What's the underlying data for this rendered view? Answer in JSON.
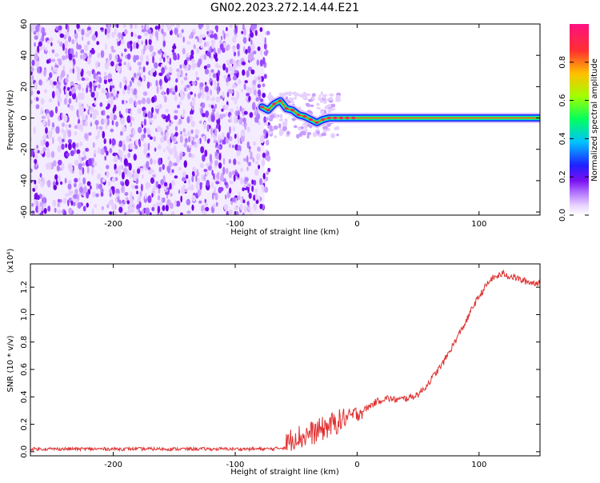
{
  "title": "GN02.2023.272.14.44.E21",
  "chart_data": [
    {
      "type": "heatmap",
      "xlabel": "Height of straight line (km)",
      "ylabel": "Frequency (Hz)",
      "xlim": [
        -268,
        150
      ],
      "ylim": [
        -62,
        60
      ],
      "x_ticks": [
        -200,
        -100,
        0,
        100
      ],
      "y_ticks": [
        -60,
        -40,
        -20,
        0,
        20,
        40,
        60
      ],
      "colorbar": {
        "label": "Normalized spectral amplitude",
        "range": [
          0.0,
          1.0
        ],
        "ticks": [
          0.0,
          0.2,
          0.4,
          0.6,
          0.8
        ],
        "colormap": [
          "#ffffff",
          "#e8d4ff",
          "#b070ff",
          "#7a10f0",
          "#2020ff",
          "#00c0ff",
          "#00ff60",
          "#a0ff00",
          "#ffc000",
          "#ff3030",
          "#ff1080"
        ]
      },
      "noise_region_x": [
        -268,
        -76
      ],
      "signal_track": {
        "x": [
          -78,
          -73,
          -68,
          -63,
          -58,
          -53,
          -48,
          -43,
          -38,
          -33,
          -28,
          -23,
          -18,
          -13,
          -8,
          -3,
          0,
          20,
          50,
          100,
          150
        ],
        "y": [
          7,
          5,
          9,
          11,
          6,
          5,
          2,
          1,
          -1,
          -3,
          -1,
          0,
          0,
          0,
          0,
          0,
          0,
          0,
          0,
          0,
          0
        ]
      }
    },
    {
      "type": "line",
      "xlabel": "Height of straight line (km)",
      "ylabel": "SNR (10 * v/v)",
      "y_multiplier": "(x10⁴)",
      "xlim": [
        -268,
        150
      ],
      "ylim": [
        -0.03,
        1.37
      ],
      "x_ticks": [
        -200,
        -100,
        0,
        100
      ],
      "y_ticks": [
        0.0,
        0.2,
        0.4,
        0.6,
        0.8,
        1.0,
        1.2
      ],
      "series": [
        {
          "color": "#e03030",
          "x": [
            -268,
            -220,
            -180,
            -140,
            -100,
            -70,
            -60,
            -55,
            -50,
            -45,
            -40,
            -35,
            -30,
            -25,
            -20,
            -15,
            -10,
            -5,
            0,
            5,
            10,
            15,
            20,
            25,
            30,
            35,
            40,
            45,
            50,
            55,
            60,
            65,
            70,
            75,
            80,
            85,
            90,
            95,
            100,
            105,
            110,
            115,
            120,
            125,
            130,
            135,
            140,
            145,
            150
          ],
          "y": [
            0.02,
            0.02,
            0.02,
            0.02,
            0.02,
            0.02,
            0.03,
            0.08,
            0.12,
            0.1,
            0.13,
            0.14,
            0.16,
            0.18,
            0.2,
            0.22,
            0.24,
            0.26,
            0.28,
            0.3,
            0.33,
            0.36,
            0.38,
            0.39,
            0.38,
            0.38,
            0.39,
            0.4,
            0.42,
            0.46,
            0.52,
            0.58,
            0.64,
            0.72,
            0.8,
            0.88,
            0.96,
            1.06,
            1.13,
            1.2,
            1.26,
            1.28,
            1.3,
            1.28,
            1.27,
            1.25,
            1.24,
            1.23,
            1.24
          ]
        }
      ]
    }
  ]
}
